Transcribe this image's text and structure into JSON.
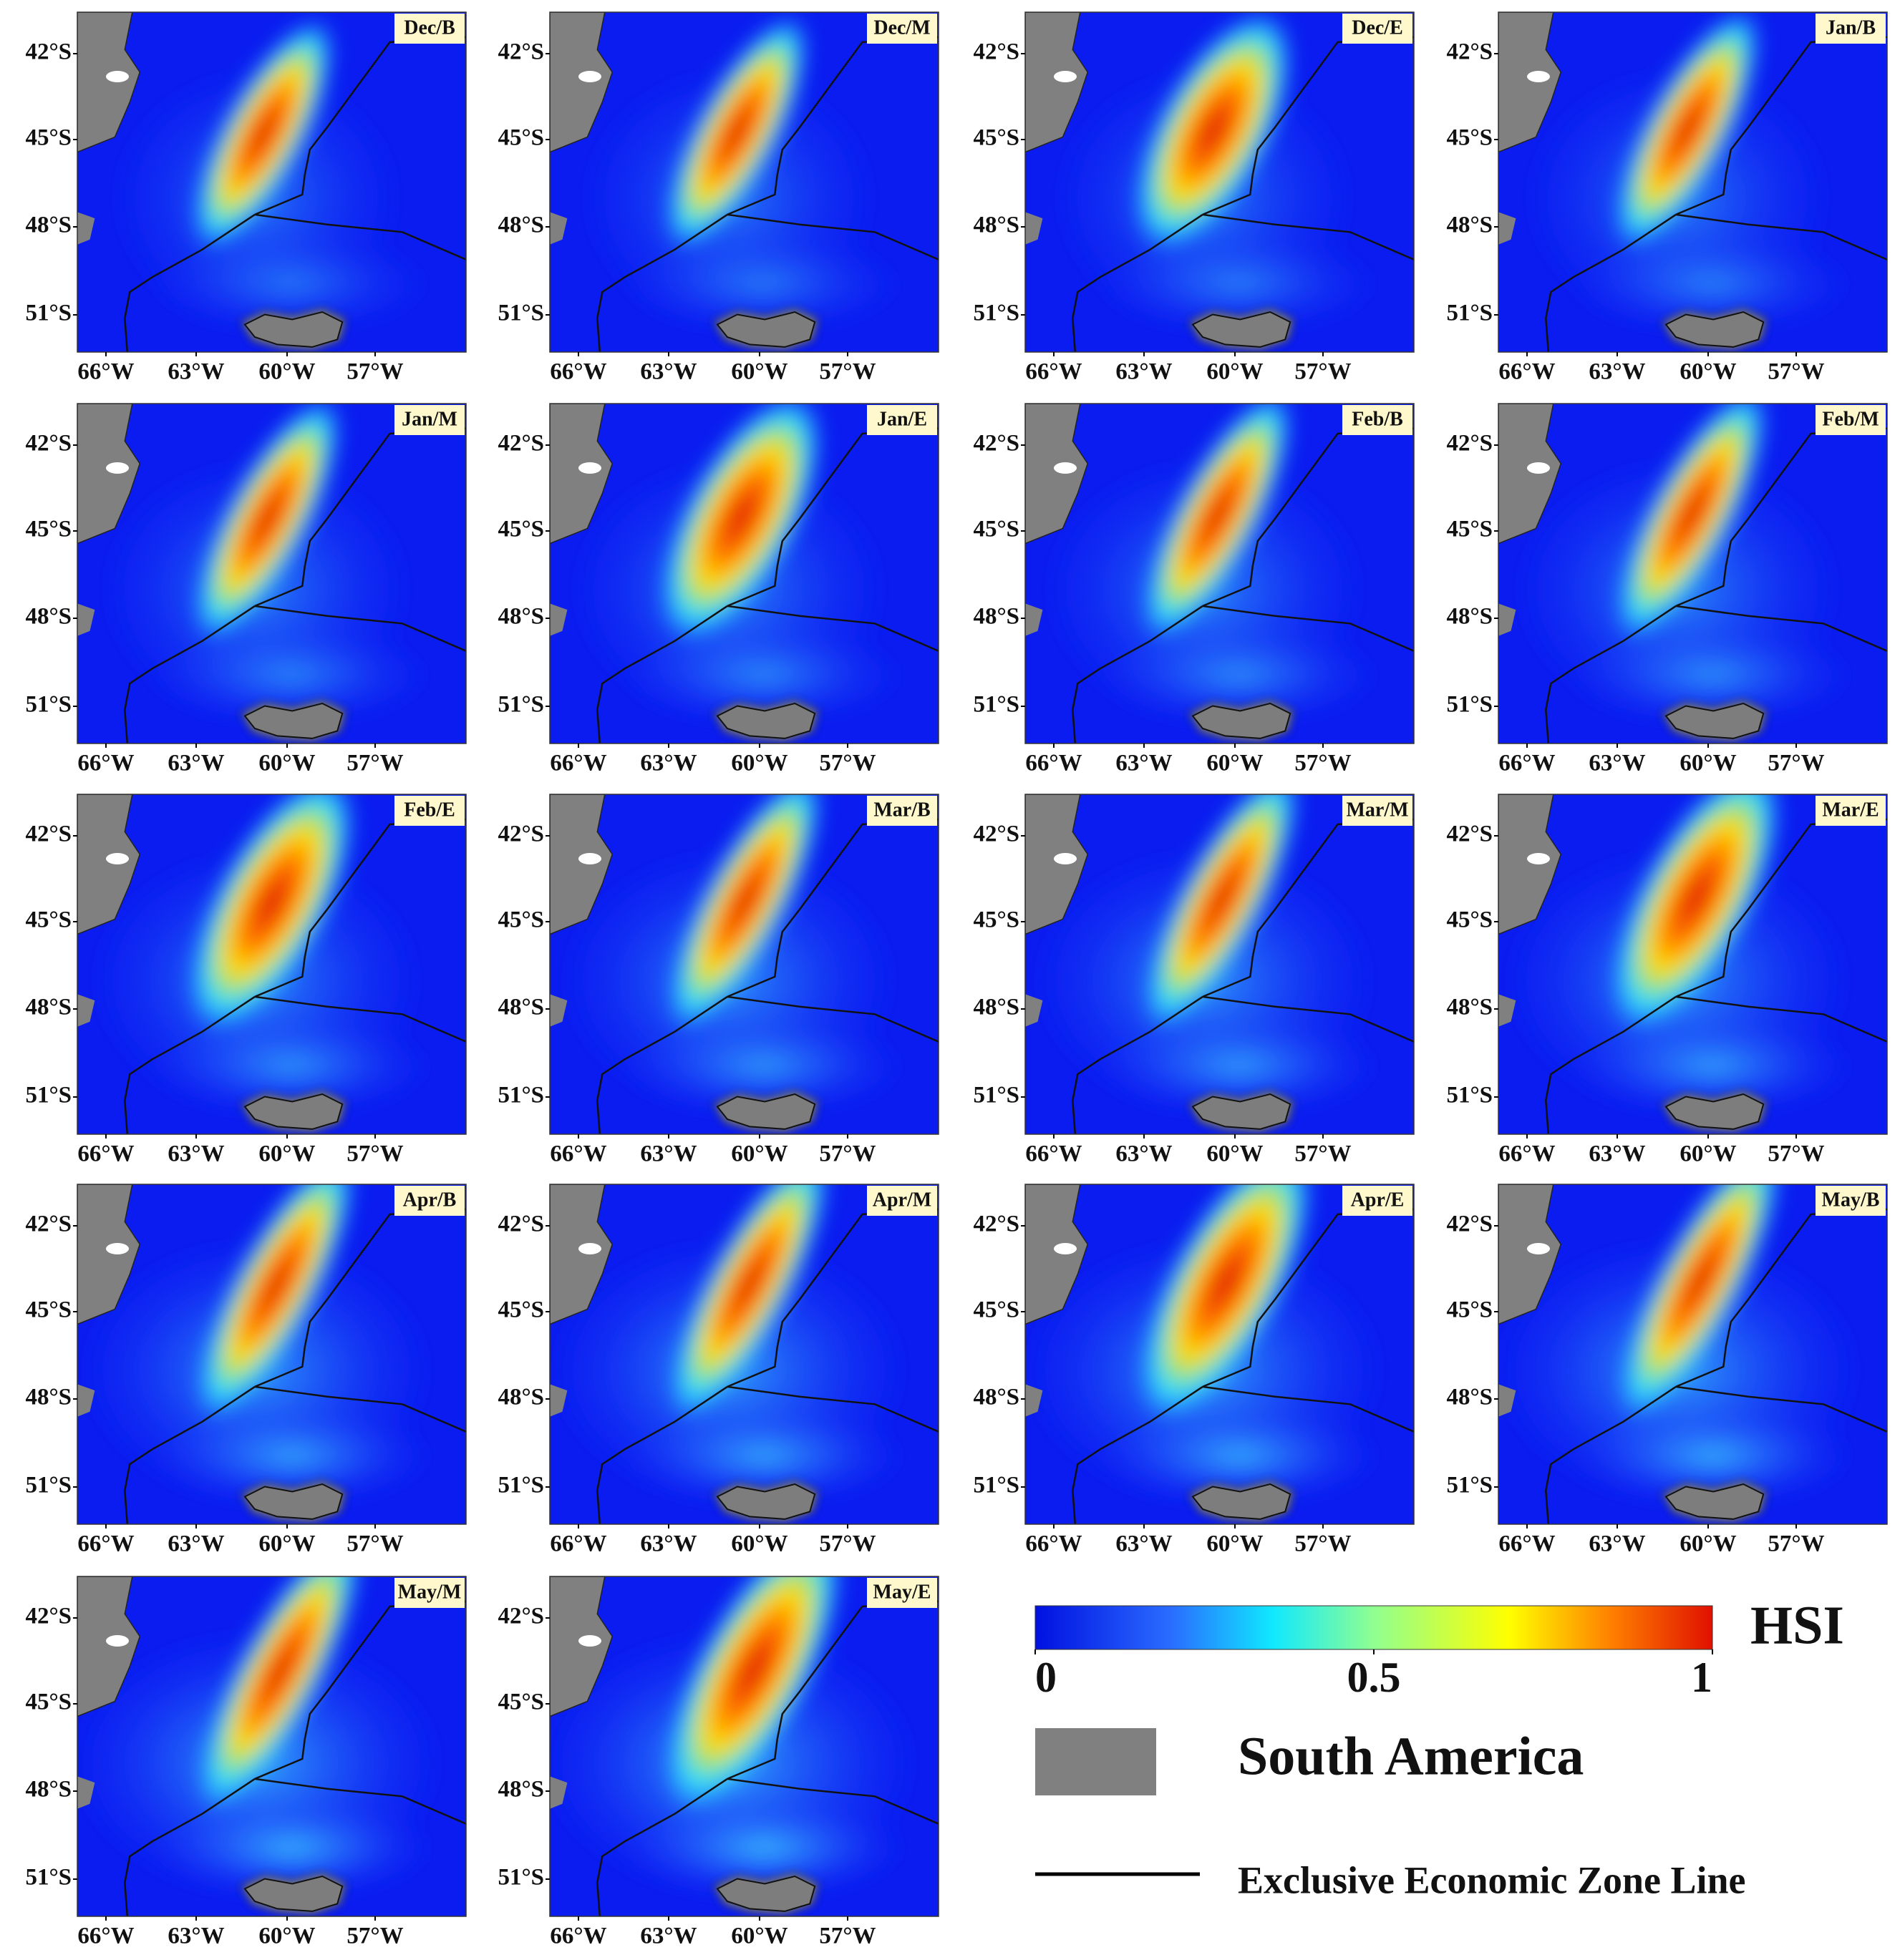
{
  "panels": [
    "Dec/B",
    "Dec/M",
    "Dec/E",
    "Jan/B",
    "Jan/M",
    "Jan/E",
    "Feb/B",
    "Feb/M",
    "Feb/E",
    "Mar/B",
    "Mar/M",
    "Mar/E",
    "Apr/B",
    "Apr/M",
    "Apr/E",
    "May/B",
    "May/M",
    "May/E"
  ],
  "lat_ticks": [
    "42°S",
    "45°S",
    "48°S",
    "51°S"
  ],
  "lon_ticks": [
    "66°W",
    "63°W",
    "60°W",
    "57°W"
  ],
  "colorbar": {
    "label": "HSI",
    "range": [
      0,
      1
    ],
    "ticks": [
      0,
      0.5,
      1
    ]
  },
  "legend": {
    "land": "South America",
    "eez": "Exclusive Economic Zone Line"
  }
}
